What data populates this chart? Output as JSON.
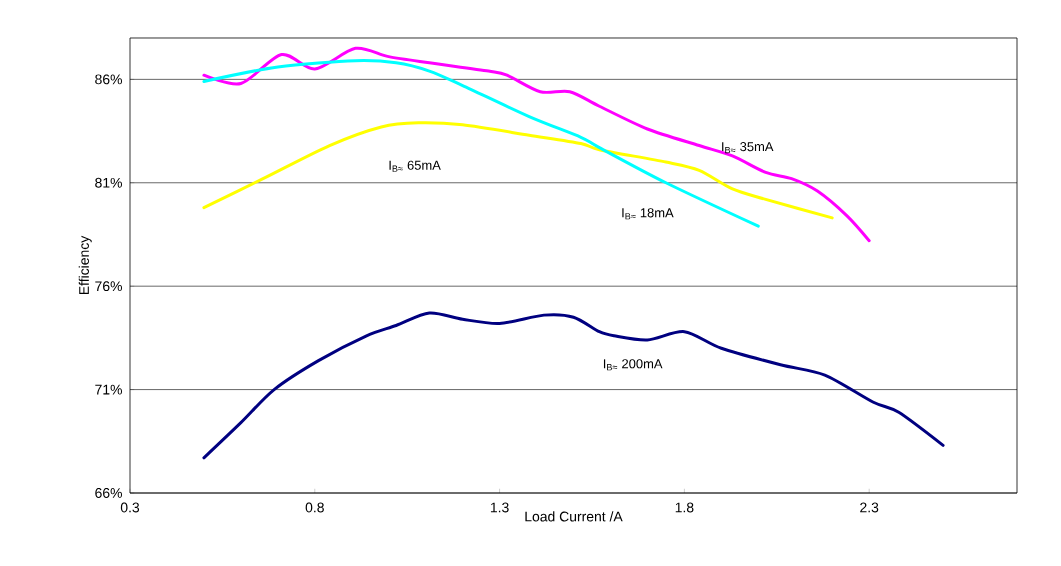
{
  "chart_data": {
    "type": "line",
    "xlabel": "Load Current /A",
    "ylabel": "Efficiency",
    "xlim": [
      0.3,
      2.7
    ],
    "ylim": [
      66,
      88
    ],
    "xticks": [
      0.3,
      0.8,
      1.3,
      1.8,
      2.3
    ],
    "yticks": [
      {
        "value": 66,
        "label": "66%"
      },
      {
        "value": 71,
        "label": "71%"
      },
      {
        "value": 76,
        "label": "76%"
      },
      {
        "value": 81,
        "label": "81%"
      },
      {
        "value": 86,
        "label": "86%"
      }
    ],
    "grid": "y",
    "legend": false,
    "series": [
      {
        "name": "I$_{B≈}$ 35mA",
        "color": "#ff00ff",
        "x": [
          0.5,
          0.6,
          0.71,
          0.8,
          0.91,
          1.0,
          1.11,
          1.27,
          1.32,
          1.41,
          1.49,
          1.57,
          1.7,
          1.84,
          1.93,
          2.02,
          2.09,
          2.16,
          2.24,
          2.3
        ],
        "values": [
          86.2,
          85.8,
          87.2,
          86.5,
          87.5,
          87.1,
          86.8,
          86.4,
          86.2,
          85.4,
          85.4,
          84.7,
          83.6,
          82.8,
          82.3,
          81.5,
          81.2,
          80.6,
          79.4,
          78.2
        ]
      },
      {
        "name": "I$_{B≈}$ 65mA",
        "color": "#ffff00",
        "x": [
          0.5,
          0.66,
          0.84,
          0.98,
          1.08,
          1.2,
          1.38,
          1.52,
          1.57,
          1.75,
          1.84,
          1.93,
          2.02,
          2.2
        ],
        "values": [
          79.8,
          81.2,
          82.8,
          83.7,
          83.9,
          83.8,
          83.3,
          82.9,
          82.6,
          82.0,
          81.6,
          80.7,
          80.2,
          79.3
        ]
      },
      {
        "name": "I$_{B≈}$ 18mA",
        "color": "#00ffff",
        "x": [
          0.5,
          0.7,
          0.91,
          1.02,
          1.11,
          1.2,
          1.38,
          1.52,
          1.57,
          1.75,
          2.0
        ],
        "values": [
          85.9,
          86.6,
          86.9,
          86.8,
          86.4,
          85.7,
          84.2,
          83.2,
          82.7,
          81.0,
          78.9
        ]
      },
      {
        "name": "I$_{B≈}$ 200mA",
        "color": "#000080",
        "x": [
          0.5,
          0.6,
          0.69,
          0.81,
          0.94,
          1.02,
          1.11,
          1.2,
          1.3,
          1.42,
          1.5,
          1.57,
          1.61,
          1.7,
          1.8,
          1.9,
          2.06,
          2.18,
          2.31,
          2.38,
          2.5
        ],
        "values": [
          67.7,
          69.4,
          71.0,
          72.4,
          73.6,
          74.1,
          74.7,
          74.4,
          74.2,
          74.6,
          74.5,
          73.8,
          73.6,
          73.4,
          73.8,
          73.0,
          72.2,
          71.7,
          70.4,
          69.9,
          68.3
        ]
      }
    ]
  }
}
